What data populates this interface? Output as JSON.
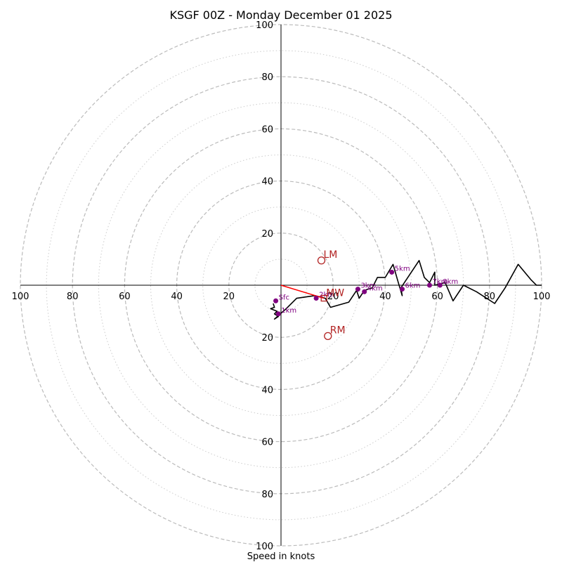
{
  "chart_data": {
    "type": "hodograph",
    "title": "KSGF 00Z - Monday December 01 2025",
    "xlabel": "Speed in knots",
    "units": "knots",
    "xlim": [
      -100,
      100
    ],
    "ylim": [
      -100,
      100
    ],
    "rings_major": [
      20,
      40,
      60,
      80,
      100
    ],
    "rings_minor": [
      10,
      30,
      50,
      70,
      90
    ],
    "x_tick_labels": [
      "100",
      "80",
      "60",
      "40",
      "20",
      "20",
      "40",
      "60",
      "80",
      "100"
    ],
    "y_tick_labels": [
      "100",
      "80",
      "60",
      "40",
      "20",
      "20",
      "40",
      "60",
      "80",
      "100"
    ],
    "hodograph_trace": [
      [
        -3,
        -7
      ],
      [
        -2.5,
        -8.5
      ],
      [
        -4,
        -9
      ],
      [
        -1.5,
        -10
      ],
      [
        -2.5,
        -11
      ],
      [
        -1,
        -12
      ],
      [
        -2.5,
        -13
      ],
      [
        2,
        -9
      ],
      [
        6,
        -5
      ],
      [
        13,
        -4
      ],
      [
        17,
        -5
      ],
      [
        19,
        -8.5
      ],
      [
        26,
        -6.5
      ],
      [
        29,
        -2
      ],
      [
        30,
        -5
      ],
      [
        32,
        -2
      ],
      [
        35,
        -1
      ],
      [
        37,
        3
      ],
      [
        40,
        3
      ],
      [
        43,
        8
      ],
      [
        45,
        1
      ],
      [
        46.5,
        -4
      ],
      [
        46,
        -1
      ],
      [
        53,
        9.5
      ],
      [
        55,
        3
      ],
      [
        57,
        1
      ],
      [
        59,
        5
      ],
      [
        59,
        0
      ],
      [
        61,
        0.5
      ],
      [
        63,
        1
      ],
      [
        66,
        -6
      ],
      [
        70,
        0
      ],
      [
        75,
        -2.5
      ],
      [
        82,
        -7
      ],
      [
        86,
        -1
      ],
      [
        91,
        8
      ],
      [
        96,
        2
      ],
      [
        98,
        0
      ],
      [
        100,
        0
      ]
    ],
    "height_points": [
      {
        "label": "Sfc",
        "u": -2,
        "v": -6
      },
      {
        "label": "1km",
        "u": -1,
        "v": -11
      },
      {
        "label": "2km",
        "u": 13.5,
        "v": -5
      },
      {
        "label": "3km",
        "u": 29.5,
        "v": -1.5
      },
      {
        "label": "4km",
        "u": 32,
        "v": -2.5
      },
      {
        "label": "5km",
        "u": 42.5,
        "v": 5
      },
      {
        "label": "6km",
        "u": 46.5,
        "v": -1.5
      },
      {
        "label": "7km",
        "u": 57,
        "v": 0
      },
      {
        "label": "8km",
        "u": 61,
        "v": 0
      }
    ],
    "storm_motion": {
      "LM": {
        "label": "LM",
        "u": 15.5,
        "v": 9.5
      },
      "RM": {
        "label": "RM",
        "u": 18,
        "v": -19.5
      },
      "MW": {
        "label": "MW",
        "u": 16.5,
        "v": -5
      }
    },
    "shear_vector": {
      "from": [
        0,
        0
      ],
      "to": [
        16.5,
        -5
      ]
    }
  },
  "colors": {
    "trace": "#000000",
    "height_points": "#800080",
    "storm_motion": "#b22222",
    "shear_vector": "#ff0000",
    "rings": "#bbbbbb"
  }
}
